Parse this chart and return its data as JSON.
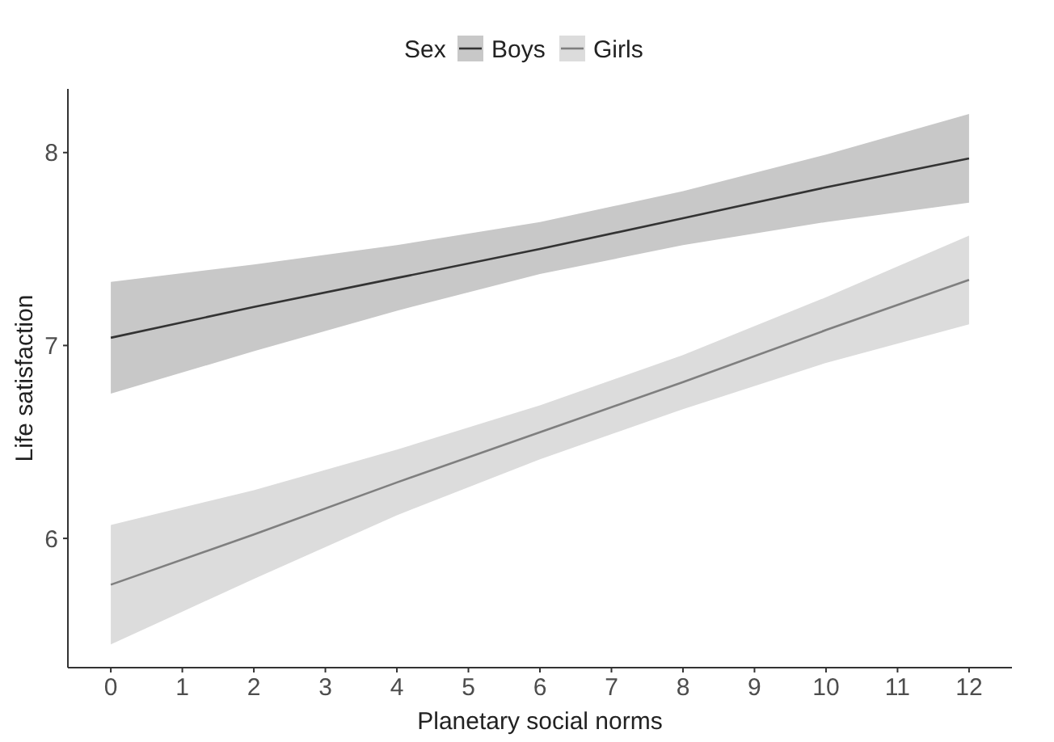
{
  "chart_data": {
    "type": "line",
    "xlabel": "Planetary social norms",
    "ylabel": "Life satisfaction",
    "legend_title": "Sex",
    "legend": "top",
    "x": [
      0,
      2,
      4,
      6,
      8,
      10,
      12
    ],
    "xlim": [
      -0.6,
      12.6
    ],
    "xticks": [
      0,
      1,
      2,
      3,
      4,
      5,
      6,
      7,
      8,
      9,
      10,
      11,
      12
    ],
    "ylim": [
      5.33,
      8.33
    ],
    "yticks": [
      6,
      7,
      8
    ],
    "grid": false,
    "marker": "none",
    "line_style": "solid",
    "series": [
      {
        "name": "Boys",
        "color": "#333333",
        "values": [
          7.04,
          7.2,
          7.35,
          7.5,
          7.66,
          7.82,
          7.97
        ],
        "lower": [
          6.75,
          6.97,
          7.18,
          7.37,
          7.52,
          7.64,
          7.74
        ],
        "upper": [
          7.33,
          7.42,
          7.52,
          7.64,
          7.8,
          7.99,
          8.2
        ]
      },
      {
        "name": "Girls",
        "color": "#7f7f7f",
        "values": [
          5.76,
          6.02,
          6.29,
          6.55,
          6.81,
          7.08,
          7.34
        ],
        "lower": [
          5.45,
          5.79,
          6.12,
          6.41,
          6.67,
          6.91,
          7.11
        ],
        "upper": [
          6.07,
          6.25,
          6.46,
          6.69,
          6.95,
          7.25,
          7.57
        ]
      }
    ]
  }
}
